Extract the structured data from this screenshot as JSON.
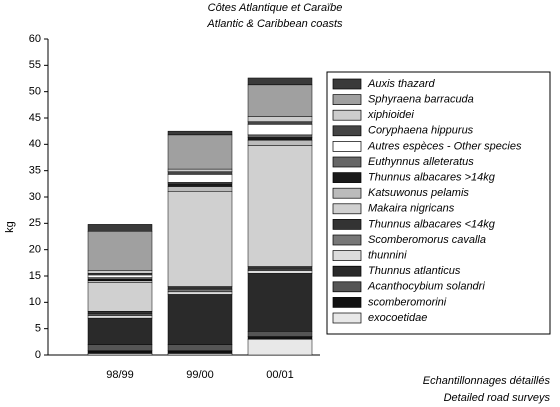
{
  "chart_data": {
    "type": "stacked_bar",
    "title": [
      "Côtes Atlantique et Caraïbe",
      "Atlantic & Caribbean coasts"
    ],
    "x_label": [
      "Echantillonnages détaillés",
      "Detailed road surveys"
    ],
    "y_label": "kg",
    "categories": [
      "98/99",
      "99/00",
      "00/01"
    ],
    "ylim": [
      0,
      60
    ],
    "yticks": [
      0,
      5,
      10,
      15,
      20,
      25,
      30,
      35,
      40,
      45,
      50,
      55,
      60
    ],
    "series": [
      {
        "name": "exocoetidae",
        "color": "#e8e8e8",
        "values": [
          0.3,
          0.3,
          3
        ]
      },
      {
        "name": "scomberomorini",
        "color": "#111111",
        "values": [
          0.5,
          0.5,
          0.5
        ]
      },
      {
        "name": "Acanthocybium solandri",
        "color": "#555555",
        "values": [
          1.2,
          1.2,
          1
        ]
      },
      {
        "name": "Thunnus atlanticus",
        "color": "#2a2a2a",
        "values": [
          5,
          9.5,
          11
        ]
      },
      {
        "name": "thunnini",
        "color": "#dcdcdc",
        "values": [
          0.5,
          0.5,
          0.5
        ]
      },
      {
        "name": "Scomberomorus cavalla",
        "color": "#777777",
        "values": [
          0.3,
          0.5,
          0.3
        ]
      },
      {
        "name": "Thunnus albacares <14kg",
        "color": "#333333",
        "values": [
          0.5,
          0.5,
          0.5
        ]
      },
      {
        "name": "Makaira nigricans",
        "color": "#d0d0d0",
        "values": [
          5.5,
          18,
          23
        ]
      },
      {
        "name": "Katsuwonus pelamis",
        "color": "#bbbbbb",
        "values": [
          0.3,
          1,
          1
        ]
      },
      {
        "name": "Thunnus albacares >14kg",
        "color": "#1a1a1a",
        "values": [
          0.3,
          0.5,
          0.5
        ]
      },
      {
        "name": "Euthynnus alleteratus",
        "color": "#666666",
        "values": [
          0.3,
          0.3,
          0.5
        ]
      },
      {
        "name": "Autres espèces - Other species",
        "color": "#ffffff",
        "values": [
          0.5,
          1.5,
          2
        ]
      },
      {
        "name": "Coryphaena hippurus",
        "color": "#444444",
        "values": [
          0.3,
          0.5,
          0.5
        ]
      },
      {
        "name": "xiphioidei",
        "color": "#cccccc",
        "values": [
          0.5,
          0.5,
          1
        ]
      },
      {
        "name": "Sphyraena barracuda",
        "color": "#a0a0a0",
        "values": [
          7.5,
          6.5,
          6
        ]
      },
      {
        "name": "Auxis thazard",
        "color": "#3a3a3a",
        "values": [
          1.3,
          0.7,
          1.3
        ]
      }
    ]
  }
}
